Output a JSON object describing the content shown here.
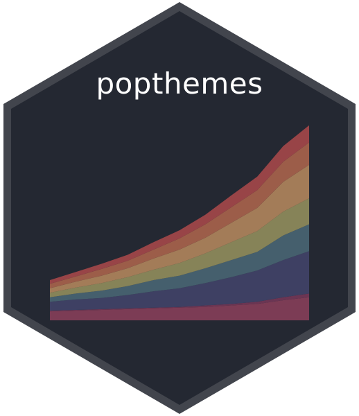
{
  "logo": {
    "title": "popthemes"
  },
  "colors": {
    "border": "#42454d",
    "background": "#242832",
    "title": "#ffffff"
  },
  "chart_data": {
    "type": "area",
    "stacked": true,
    "x": [
      0,
      1,
      2,
      3,
      4,
      5,
      6,
      7,
      8,
      9,
      10
    ],
    "series": [
      {
        "values": [
          12,
          13,
          14,
          15,
          16,
          17,
          18,
          20,
          22,
          27,
          31
        ],
        "color": "#7c3c55"
      },
      {
        "values": [
          1,
          1,
          1,
          1,
          1,
          1,
          2,
          2,
          3,
          4,
          5
        ],
        "color": "#6b3553"
      },
      {
        "values": [
          12,
          14,
          15,
          18,
          22,
          25,
          30,
          36,
          42,
          50,
          57
        ],
        "color": "#3e4063"
      },
      {
        "values": [
          6,
          8,
          10,
          12,
          15,
          17,
          20,
          23,
          25,
          33,
          36
        ],
        "color": "#455f6d"
      },
      {
        "values": [
          6,
          8,
          10,
          12,
          14,
          17,
          20,
          24,
          28,
          32,
          35
        ],
        "color": "#868358"
      },
      {
        "values": [
          6,
          8,
          10,
          12,
          15,
          18,
          21,
          26,
          31,
          40,
          45
        ],
        "color": "#a37c58"
      },
      {
        "values": [
          6,
          7,
          9,
          10,
          12,
          15,
          18,
          21,
          24,
          27,
          30
        ],
        "color": "#9c5d49"
      },
      {
        "values": [
          5,
          6,
          7,
          8,
          10,
          11,
          13,
          16,
          18,
          21,
          23
        ],
        "color": "#984447"
      }
    ],
    "ylim": [
      0,
      300
    ],
    "grid": false,
    "legend": "none"
  }
}
